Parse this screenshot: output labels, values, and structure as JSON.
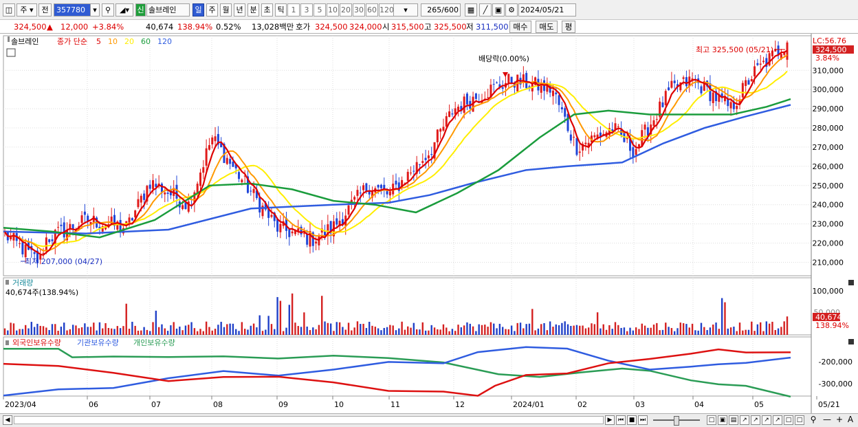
{
  "toolbar": {
    "period": "주",
    "prev": "전",
    "code": "357780",
    "new_badge": "신",
    "name": "솔브레인",
    "timeframes": [
      "일",
      "주",
      "월",
      "년",
      "분",
      "초",
      "틱"
    ],
    "active_timeframe": 0,
    "intervals": [
      "1",
      "3",
      "5",
      "10",
      "20",
      "30",
      "60",
      "120"
    ],
    "count": "265",
    "count_total": "/600",
    "date": "2024/05/21"
  },
  "quote": {
    "price": "324,500",
    "change": "12,000",
    "change_pct": "+3.84%",
    "volume": "40,674",
    "volume_ratio": "138.94%",
    "turnover_pct": "0.52%",
    "amount": "13,028백만",
    "bid_label": "호가",
    "bid": "324,500",
    "ask": "324,000",
    "open_label": "시",
    "open": "315,500",
    "high_label": "고",
    "high": "325,500",
    "low_label": "저",
    "low": "311,500",
    "buy_btn": "매수",
    "sell_btn": "매도",
    "eval_btn": "평"
  },
  "chart_data": [
    {
      "type": "candlestick",
      "title": "솔브레인",
      "indicator_label": "종가 단순",
      "series": [
        {
          "name": "5",
          "color": "#dd0000"
        },
        {
          "name": "10",
          "color": "#ff9900"
        },
        {
          "name": "20",
          "color": "#ffee00"
        },
        {
          "name": "60",
          "color": "#1a9c3c"
        },
        {
          "name": "120",
          "color": "#2f5ce0"
        }
      ],
      "x_start": "2023/04",
      "x_ticks": [
        "2023/04",
        "06",
        "07",
        "08",
        "09",
        "10",
        "11",
        "12",
        "2024/01",
        "02",
        "03",
        "04",
        "05",
        "05/21"
      ],
      "y_ticks": [
        210000,
        220000,
        230000,
        240000,
        250000,
        260000,
        270000,
        280000,
        290000,
        300000,
        310000
      ],
      "y_tick_labels": [
        "210,000",
        "220,000",
        "230,000",
        "240,000",
        "250,000",
        "260,000",
        "270,000",
        "280,000",
        "290,000",
        "300,000",
        "310,000"
      ],
      "ylim": [
        203000,
        328000
      ],
      "high_label": "최고 325,500 (05/21)",
      "low_label": "최저 207,000 (04/27)",
      "dividend_label": "배당락(0.00%)",
      "lc_label": "LC:56.76",
      "last_price_label": "324,500",
      "last_pct_label": "3.84%",
      "key_closes": [
        [
          "2023-04",
          225000
        ],
        [
          "2023-04-27",
          210000
        ],
        [
          "2023-05",
          222000
        ],
        [
          "2023-06",
          232000
        ],
        [
          "2023-06-20",
          228000
        ],
        [
          "2023-07",
          252000
        ],
        [
          "2023-07-20",
          240000
        ],
        [
          "2023-08",
          275000
        ],
        [
          "2023-08-20",
          245000
        ],
        [
          "2023-09",
          228000
        ],
        [
          "2023-09-20",
          222000
        ],
        [
          "2023-10",
          228000
        ],
        [
          "2023-10-20",
          250000
        ],
        [
          "2023-11",
          245000
        ],
        [
          "2023-11-20",
          268000
        ],
        [
          "2023-12",
          290000
        ],
        [
          "2023-12-20",
          300000
        ],
        [
          "2024-01",
          305000
        ],
        [
          "2024-01-20",
          300000
        ],
        [
          "2024-02",
          270000
        ],
        [
          "2024-02-20",
          280000
        ],
        [
          "2024-03",
          268000
        ],
        [
          "2024-03-20",
          300000
        ],
        [
          "2024-04",
          305000
        ],
        [
          "2024-04-20",
          290000
        ],
        [
          "2024-05",
          308000
        ],
        [
          "2024-05-21",
          324500
        ]
      ],
      "ma60": [
        [
          0,
          228000
        ],
        [
          70,
          226000
        ],
        [
          140,
          223000
        ],
        [
          220,
          232000
        ],
        [
          300,
          250000
        ],
        [
          360,
          251000
        ],
        [
          420,
          248000
        ],
        [
          480,
          242000
        ],
        [
          540,
          240000
        ],
        [
          600,
          236000
        ],
        [
          660,
          246000
        ],
        [
          720,
          258000
        ],
        [
          780,
          275000
        ],
        [
          830,
          287000
        ],
        [
          880,
          289000
        ],
        [
          940,
          287000
        ],
        [
          1000,
          287000
        ],
        [
          1060,
          287000
        ],
        [
          1110,
          291000
        ],
        [
          1145,
          295000
        ]
      ],
      "ma120": [
        [
          0,
          226000
        ],
        [
          120,
          225000
        ],
        [
          240,
          227000
        ],
        [
          360,
          238000
        ],
        [
          480,
          240000
        ],
        [
          560,
          241000
        ],
        [
          620,
          245000
        ],
        [
          680,
          251000
        ],
        [
          760,
          258000
        ],
        [
          820,
          260000
        ],
        [
          900,
          262000
        ],
        [
          960,
          272000
        ],
        [
          1020,
          280000
        ],
        [
          1080,
          286000
        ],
        [
          1145,
          292000
        ]
      ]
    },
    {
      "type": "bar",
      "title": "거래량",
      "current_label": "40,674주(138.94%)",
      "y_ticks": [
        "100,000",
        "50,000"
      ],
      "last_value_label": "40,674",
      "last_pct_label": "138.94%",
      "ylim": [
        0,
        120000
      ],
      "up_color": "#d42020",
      "down_color": "#2040c8"
    },
    {
      "type": "line",
      "series": [
        {
          "name": "외국인보유수량",
          "color": "#dd1111"
        },
        {
          "name": "기관보유수량",
          "color": "#2f5ce0"
        },
        {
          "name": "개인보유수량",
          "color": "#2a9c55"
        }
      ],
      "y_ticks": [
        "-200,000",
        "-300,000"
      ]
    }
  ]
}
